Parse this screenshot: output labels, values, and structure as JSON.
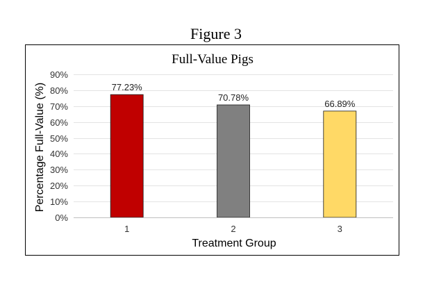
{
  "figure_caption": "Figure 3",
  "chart_data": {
    "type": "bar",
    "title": "Full-Value Pigs",
    "xlabel": "Treatment Group",
    "ylabel": "Percentage Full-Value (%)",
    "categories": [
      "1",
      "2",
      "3"
    ],
    "values": [
      77.23,
      70.78,
      66.89
    ],
    "data_labels": [
      "77.23%",
      "70.78%",
      "66.89%"
    ],
    "ylim": [
      0,
      90
    ],
    "yticks": [
      0,
      10,
      20,
      30,
      40,
      50,
      60,
      70,
      80,
      90
    ],
    "ytick_labels": [
      "0%",
      "10%",
      "20%",
      "30%",
      "40%",
      "50%",
      "60%",
      "70%",
      "80%",
      "90%"
    ],
    "bar_colors": [
      "#c00000",
      "#808080",
      "#ffd966"
    ],
    "grid": true,
    "legend": "none"
  }
}
